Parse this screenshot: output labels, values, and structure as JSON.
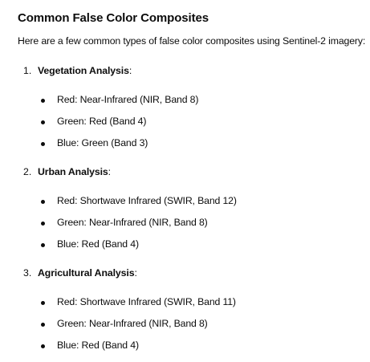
{
  "heading": "Common False Color Composites",
  "intro": "Here are a few common types of false color composites using Sentinel-2 imagery:",
  "sections": [
    {
      "number": "1.",
      "title": "Vegetation Analysis",
      "suffix": ":",
      "items": [
        "Red: Near-Infrared (NIR, Band 8)",
        "Green: Red (Band 4)",
        "Blue: Green (Band 3)"
      ]
    },
    {
      "number": "2.",
      "title": "Urban Analysis",
      "suffix": ":",
      "items": [
        "Red: Shortwave Infrared (SWIR, Band 12)",
        "Green: Near-Infrared (NIR, Band 8)",
        "Blue: Red (Band 4)"
      ]
    },
    {
      "number": "3.",
      "title": "Agricultural Analysis",
      "suffix": ":",
      "items": [
        "Red: Shortwave Infrared (SWIR, Band 11)",
        "Green: Near-Infrared (NIR, Band 8)",
        "Blue: Red (Band 4)"
      ]
    }
  ]
}
